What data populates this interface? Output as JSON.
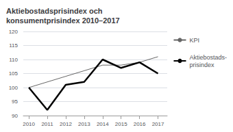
{
  "chart_data": {
    "type": "line",
    "title": "Aktiebostadsprisindex och\nkonsumentprisindex 2010–2017",
    "x": [
      2010,
      2011,
      2012,
      2013,
      2014,
      2015,
      2016,
      2017
    ],
    "series": [
      {
        "name": "KPI",
        "color": "#666666",
        "values": [
          100,
          102,
          104,
          106,
          108,
          108,
          109,
          111
        ]
      },
      {
        "name": "Aktiebostads-\nprisindex",
        "color": "#000000",
        "values": [
          100,
          92,
          101,
          102,
          110,
          107,
          109,
          105
        ]
      }
    ],
    "xlim": [
      2009.7,
      2017.5
    ],
    "xticks": [
      2010,
      2011,
      2012,
      2013,
      2014,
      2015,
      2016,
      2017
    ],
    "ylim": [
      90,
      120
    ],
    "yticks": [
      90,
      95,
      100,
      105,
      110,
      115,
      120
    ],
    "grid": true,
    "legend": "right"
  }
}
